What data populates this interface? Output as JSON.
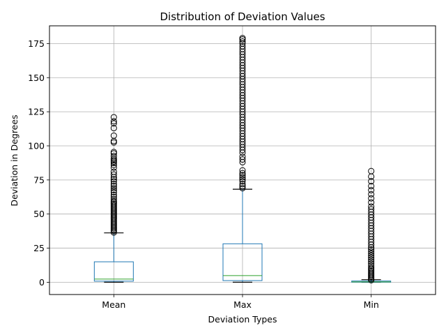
{
  "chart_data": {
    "type": "box",
    "title": "Distribution of Deviation Values",
    "xlabel": "Deviation Types",
    "ylabel": "Deviation in Degrees",
    "ylim": [
      -9,
      188
    ],
    "yticks": [
      0,
      25,
      50,
      75,
      100,
      125,
      150,
      175
    ],
    "grid": true,
    "legend": "none",
    "colors": {
      "box": "#1f77b4",
      "median": "#2ca02c",
      "whisker": "#1f77b4",
      "cap": "#000000",
      "flier": "#000000",
      "grid": "#b0b0b0"
    },
    "categories": [
      "Mean",
      "Max",
      "Min"
    ],
    "boxes": [
      {
        "name": "Mean",
        "whisker_low": 0,
        "q1": 0.8,
        "median": 2.3,
        "q3": 15.0,
        "whisker_high": 36.2,
        "fliers": [
          36.5,
          37.5,
          38.5,
          39.5,
          40.5,
          41.5,
          42.5,
          43.5,
          44.5,
          45.5,
          46.5,
          47.5,
          48.5,
          49.5,
          50.5,
          51.5,
          52.5,
          53.5,
          54.5,
          55.5,
          56.5,
          57.5,
          58.5,
          59.5,
          61,
          62.5,
          64,
          66,
          67.5,
          69,
          70.5,
          72,
          74,
          75.5,
          77,
          79,
          81,
          84,
          86,
          87.5,
          88.5,
          89.5,
          90.5,
          92.5,
          94.5,
          95.5,
          102.5,
          103.5,
          107.5,
          113,
          116.5,
          118,
          121
        ]
      },
      {
        "name": "Max",
        "whisker_low": 0,
        "q1": 1.2,
        "median": 4.9,
        "q3": 28.2,
        "whisker_high": 68.2,
        "fliers": [
          69,
          70.5,
          72,
          74,
          75.5,
          77,
          78.5,
          80,
          82,
          88,
          90,
          92,
          95,
          97,
          99,
          101,
          103,
          105,
          107,
          109,
          111,
          113,
          115,
          117,
          119,
          121,
          123,
          125,
          127,
          129,
          131,
          133,
          135,
          137,
          139,
          141,
          143,
          145,
          147,
          149,
          151,
          153,
          155,
          157,
          159,
          161,
          163,
          165,
          167,
          169,
          171,
          173,
          175,
          176.5,
          178,
          179
        ]
      },
      {
        "name": "Min",
        "whisker_low": 0,
        "q1": 0.05,
        "median": 0.3,
        "q3": 0.9,
        "whisker_high": 1.9,
        "fliers": [
          1.5,
          2.5,
          3.5,
          4.5,
          5.5,
          6.5,
          7.5,
          8.5,
          9.5,
          10.5,
          12,
          13.5,
          15,
          16.5,
          18,
          19.5,
          21,
          22.5,
          24,
          25.5,
          27.5,
          29.5,
          31.5,
          33.5,
          35.5,
          37.5,
          39.5,
          41.5,
          43.5,
          45.5,
          47.5,
          49.5,
          51.5,
          53.5,
          55.5,
          58.5,
          61.5,
          64.5,
          67.5,
          70.5,
          74,
          77.5,
          81.5
        ]
      }
    ]
  }
}
